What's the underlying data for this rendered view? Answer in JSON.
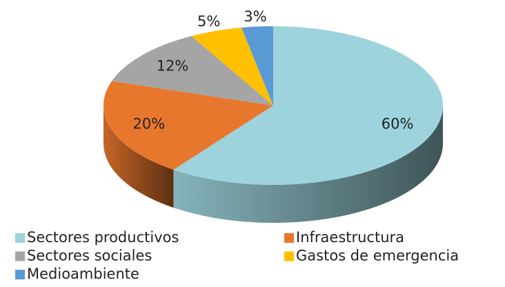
{
  "chart_data": {
    "type": "pie",
    "categories": [
      "Sectores productivos",
      "Infraestructura",
      "Sectores sociales",
      "Gastos de emergencia",
      "Medioambiente"
    ],
    "values": [
      60,
      20,
      12,
      5,
      3
    ],
    "value_labels": [
      "60%",
      "20%",
      "12%",
      "5%",
      "3%"
    ],
    "colors": [
      "#9dd3dc",
      "#e8772e",
      "#a5a5a5",
      "#ffc000",
      "#5b9bd5"
    ],
    "legend": "bottom"
  }
}
